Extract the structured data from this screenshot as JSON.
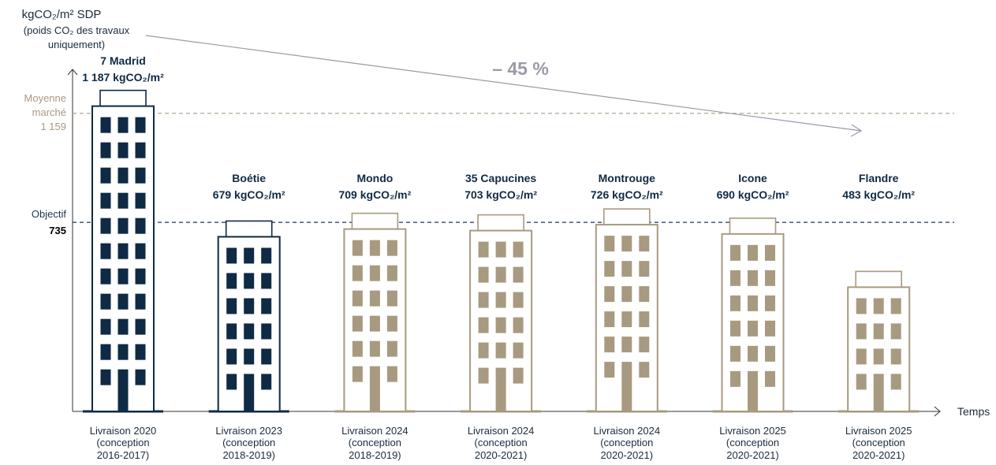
{
  "chart_data": {
    "type": "bar",
    "y_label": "kgCO₂/m² SDP",
    "y_label_note": "(poids CO₂ des travaux uniquement)",
    "x_label": "Temps",
    "annotation": "– 45 %",
    "categories": [
      "7 Madrid",
      "Boétie",
      "Mondo",
      "35 Capucines",
      "Montrouge",
      "Icone",
      "Flandre"
    ],
    "delivery": [
      "Livraison 2020",
      "Livraison 2023",
      "Livraison 2024",
      "Livraison 2024",
      "Livraison 2024",
      "Livraison 2025",
      "Livraison 2025"
    ],
    "conception": [
      "(conception 2016-2017)",
      "(conception 2018-2019)",
      "(conception 2018-2019)",
      "(conception 2020-2021)",
      "(conception 2020-2021)",
      "(conception 2020-2021)",
      "(conception 2020-2021)"
    ],
    "values": [
      1187,
      679,
      709,
      703,
      726,
      690,
      483
    ],
    "value_labels": [
      "1 187 kgCO₂/m²",
      "679 kgCO₂/m²",
      "709 kgCO₂/m²",
      "703 kgCO₂/m²",
      "726 kgCO₂/m²",
      "690 kgCO₂/m²",
      "483 kgCO₂/m²"
    ],
    "colors": [
      "#0f2a44",
      "#0f2a44",
      "#a79a80",
      "#a79a80",
      "#a79a80",
      "#a79a80",
      "#a79a80"
    ],
    "ylim": [
      0,
      1330
    ],
    "reference_lines": [
      {
        "label": "Moyenne marché",
        "value": 1159,
        "value_label": "1 159",
        "color": "#a79a80"
      },
      {
        "label": "Objectif",
        "value": 735,
        "value_label": "735",
        "color": "#1b3550"
      }
    ]
  }
}
